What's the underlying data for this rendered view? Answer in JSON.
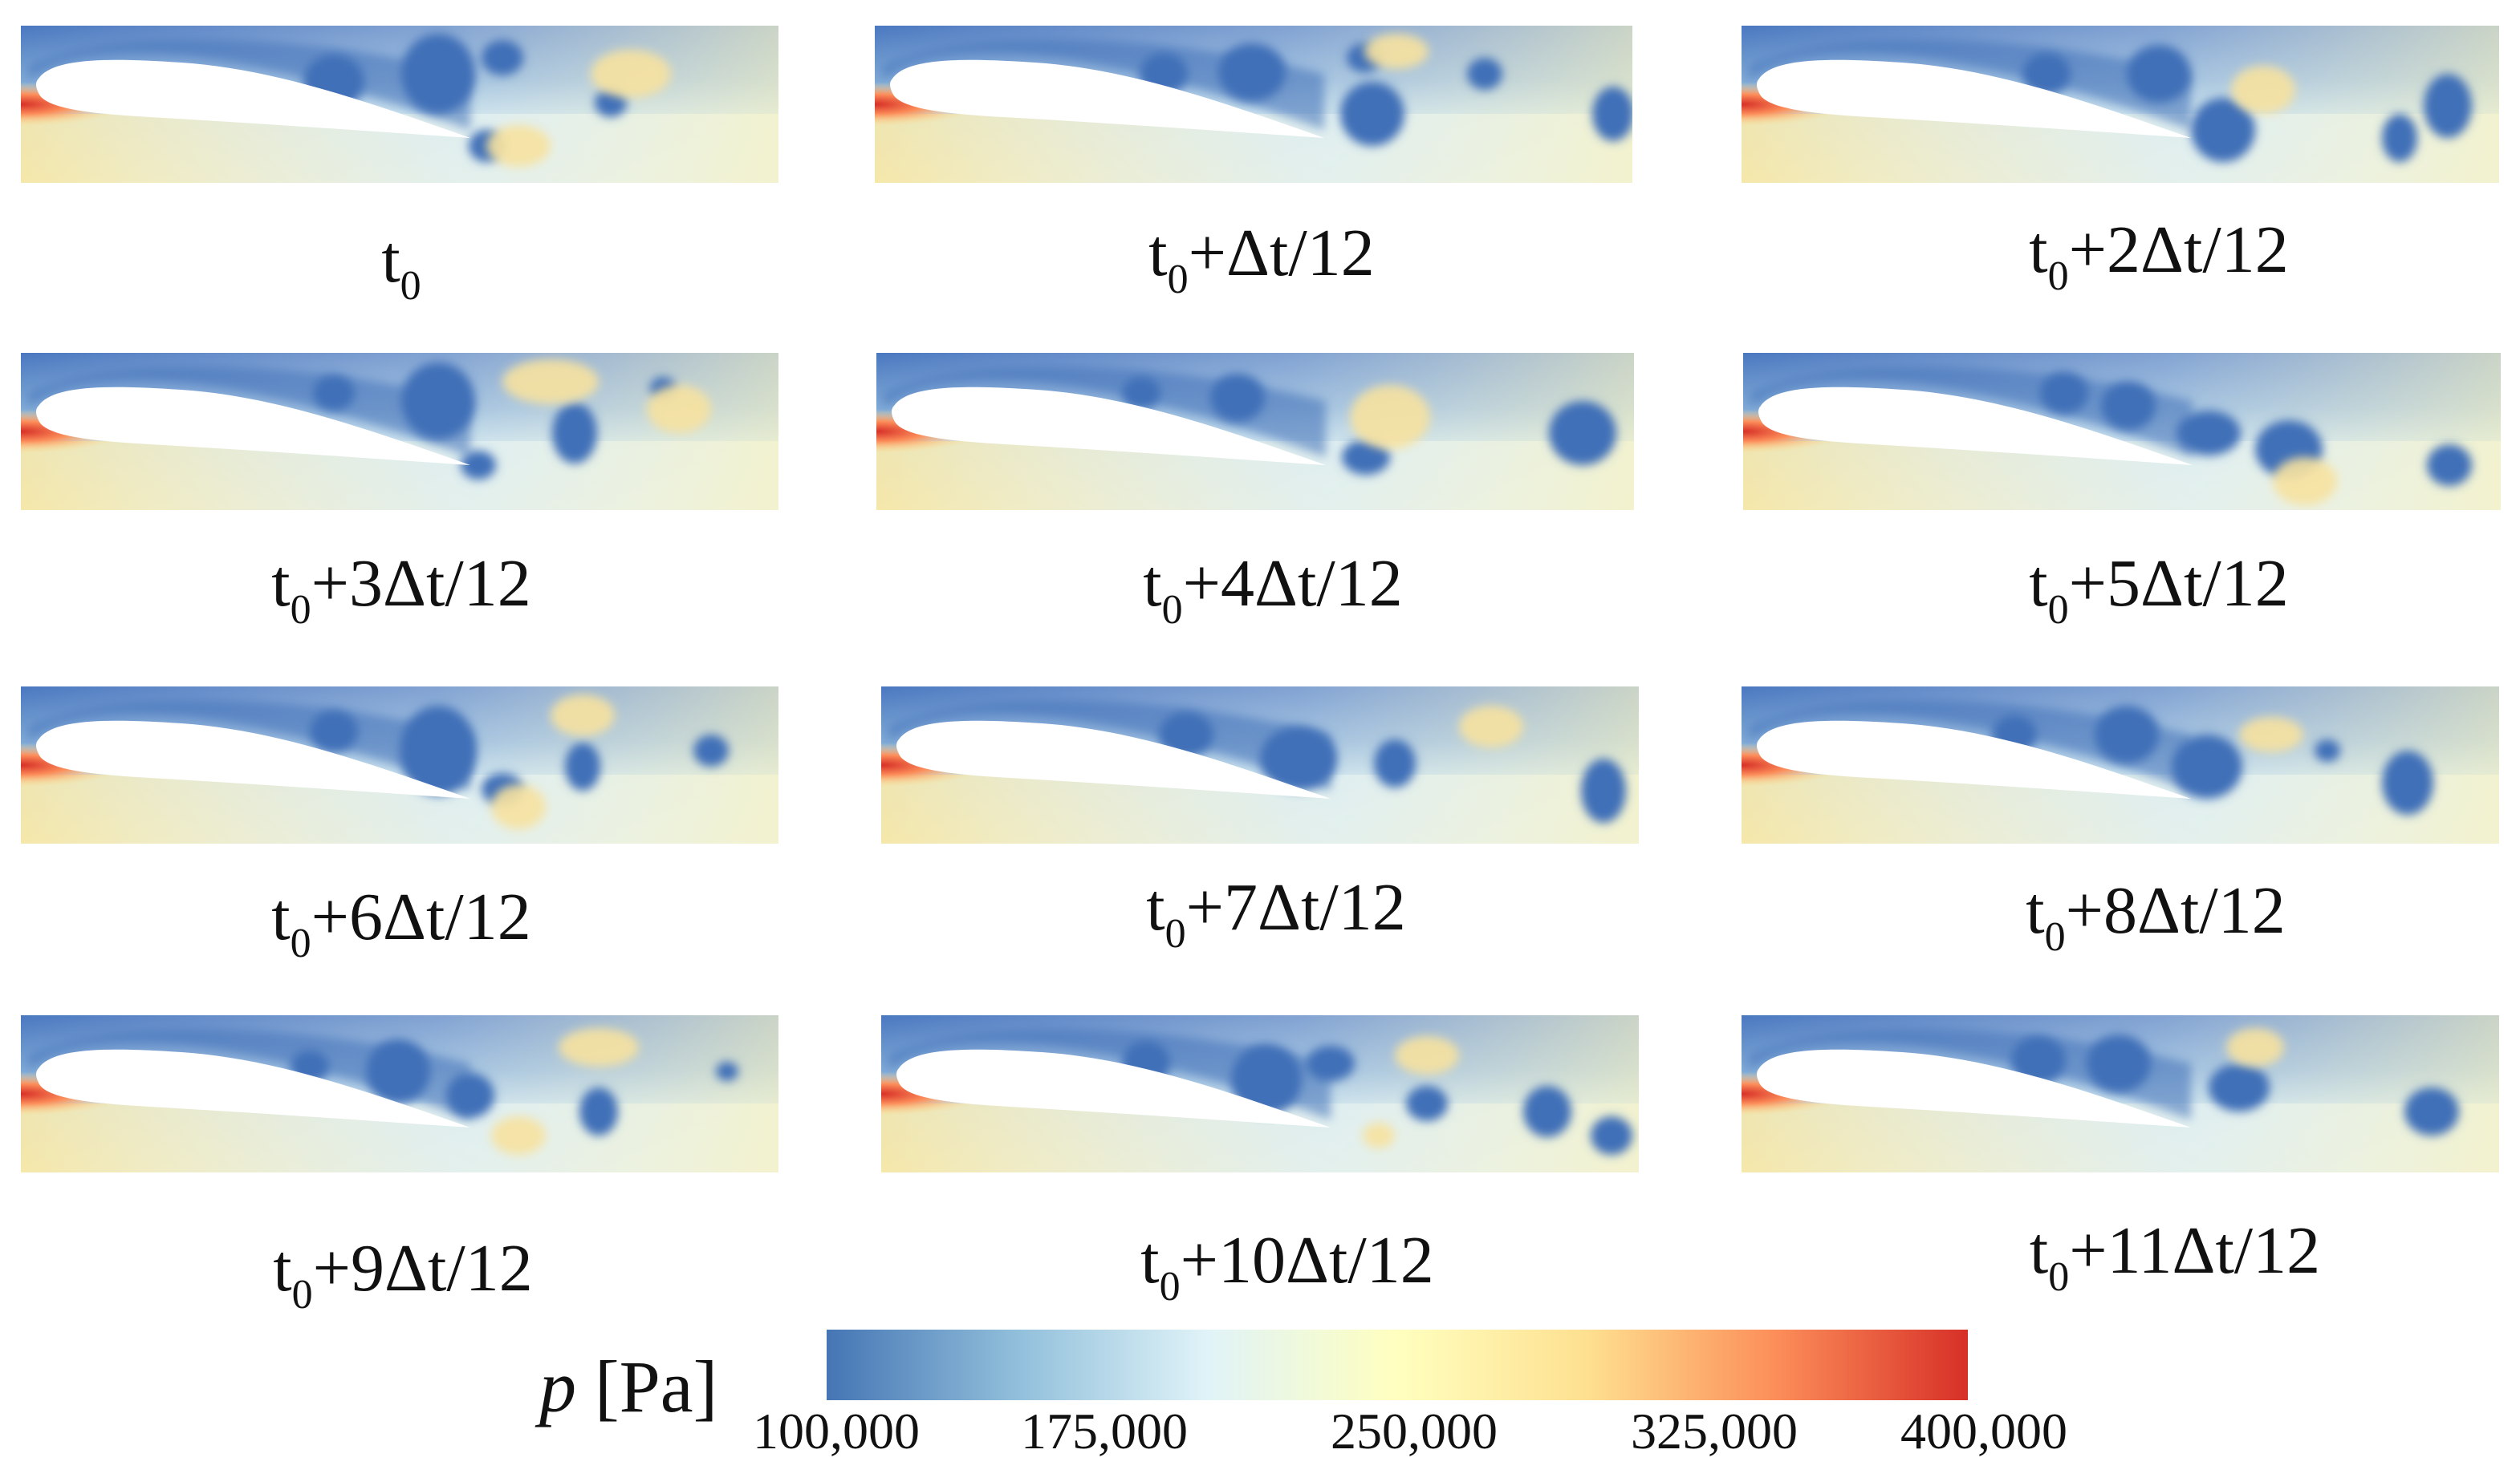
{
  "figure": {
    "panels": [
      {
        "label_base": "t",
        "label_sub": "0",
        "label_rest": ""
      },
      {
        "label_base": "t",
        "label_sub": "0",
        "label_rest": "+Δt/12"
      },
      {
        "label_base": "t",
        "label_sub": "0",
        "label_rest": "+2Δt/12"
      },
      {
        "label_base": "t",
        "label_sub": "0",
        "label_rest": "+3Δt/12"
      },
      {
        "label_base": "t",
        "label_sub": "0",
        "label_rest": "+4Δt/12"
      },
      {
        "label_base": "t",
        "label_sub": "0",
        "label_rest": "+5Δt/12"
      },
      {
        "label_base": "t",
        "label_sub": "0",
        "label_rest": "+6Δt/12"
      },
      {
        "label_base": "t",
        "label_sub": "0",
        "label_rest": "+7Δt/12"
      },
      {
        "label_base": "t",
        "label_sub": "0",
        "label_rest": "+8Δt/12"
      },
      {
        "label_base": "t",
        "label_sub": "0",
        "label_rest": "+9Δt/12"
      },
      {
        "label_base": "t",
        "label_sub": "0",
        "label_rest": "+10Δt/12"
      },
      {
        "label_base": "t",
        "label_sub": "0",
        "label_rest": "+11Δt/12"
      }
    ],
    "colorbar": {
      "variable": "p",
      "unit": "[Pa]",
      "ticks": [
        "100,000",
        "175,000",
        "250,000",
        "325,000",
        "400,000"
      ],
      "min": 100000,
      "max": 400000,
      "colors": [
        "#4575b4",
        "#91bfdb",
        "#e0f3f8",
        "#ffffbf",
        "#fee090",
        "#fc8d59",
        "#d73027"
      ]
    }
  }
}
